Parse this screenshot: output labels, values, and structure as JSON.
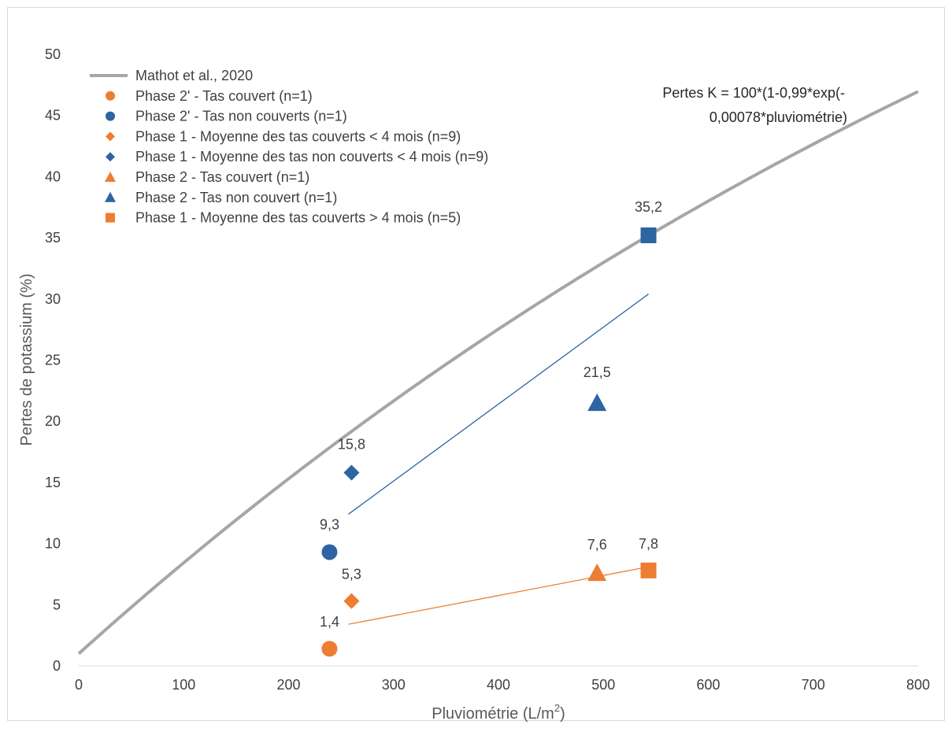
{
  "chart_data": {
    "type": "scatter",
    "xlabel": "Pluviométrie (L/m",
    "xlabel_sup": "2",
    "xlabel_end": ")",
    "ylabel": "Pertes de potassium (%)",
    "xlim": [
      0,
      800
    ],
    "ylim": [
      0,
      50
    ],
    "x_ticks": [
      0,
      100,
      200,
      300,
      400,
      500,
      600,
      700,
      800
    ],
    "y_ticks": [
      0,
      5,
      10,
      15,
      20,
      25,
      30,
      35,
      40,
      45,
      50
    ],
    "grid": false,
    "legend_position": "top-left",
    "annotation": {
      "line1": "Pertes K = 100*(1-0,99*exp(-",
      "line2": "0,00078*pluviométrie)"
    },
    "model_curve": {
      "name": "Mathot et al., 2020",
      "formula": "100*(1-0.99*exp(-0.00078*x))",
      "color": "#a6a6a6"
    },
    "series": [
      {
        "name": "Phase 2' - Tas couvert (n=1)",
        "marker": "circle",
        "color": "#ed7d31",
        "points": [
          {
            "x": 239,
            "y": 1.4,
            "label": "1,4"
          }
        ]
      },
      {
        "name": "Phase 2' - Tas non couverts (n=1)",
        "marker": "circle",
        "color": "#2e64a1",
        "points": [
          {
            "x": 239,
            "y": 9.3,
            "label": "9,3"
          }
        ]
      },
      {
        "name": "Phase 1 - Moyenne des tas couverts < 4 mois (n=9)",
        "marker": "diamond",
        "color": "#ed7d31",
        "points": [
          {
            "x": 260,
            "y": 5.3,
            "label": "5,3"
          }
        ]
      },
      {
        "name": "Phase 1 - Moyenne des tas non couverts < 4 mois (n=9)",
        "marker": "diamond",
        "color": "#2e64a1",
        "points": [
          {
            "x": 260,
            "y": 15.8,
            "label": "15,8"
          }
        ]
      },
      {
        "name": "Phase 2 - Tas couvert (n=1)",
        "marker": "triangle",
        "color": "#ed7d31",
        "points": [
          {
            "x": 494,
            "y": 7.6,
            "label": "7,6"
          }
        ]
      },
      {
        "name": "Phase 2 - Tas non couvert (n=1)",
        "marker": "triangle",
        "color": "#2e64a1",
        "points": [
          {
            "x": 494,
            "y": 21.5,
            "label": "21,5"
          }
        ]
      },
      {
        "name": "Phase 1 - Moyenne des tas couverts > 4 mois (n=5)",
        "marker": "square",
        "color": "#ed7d31",
        "points": [
          {
            "x": 543,
            "y": 7.8,
            "label": "7,8"
          }
        ]
      },
      {
        "marker": "square",
        "color": "#2e64a1",
        "points": [
          {
            "x": 543,
            "y": 35.2,
            "label": "35,2"
          }
        ]
      }
    ],
    "trendlines": [
      {
        "color": "#2e64a1",
        "from": {
          "x": 257,
          "y": 12.4
        },
        "to": {
          "x": 543,
          "y": 30.4
        }
      },
      {
        "color": "#ed7d31",
        "from": {
          "x": 257,
          "y": 3.4
        },
        "to": {
          "x": 543,
          "y": 8.1
        }
      }
    ]
  }
}
